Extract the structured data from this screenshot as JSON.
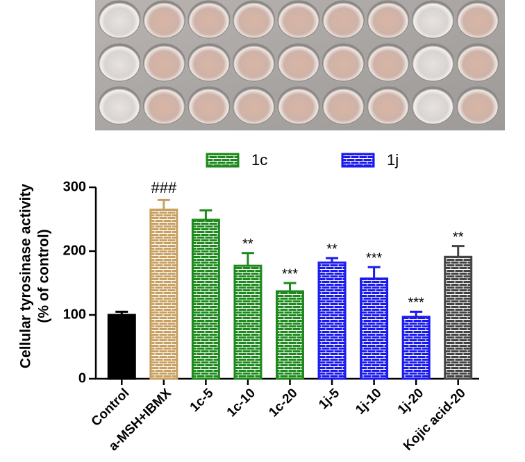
{
  "chart_data": {
    "type": "bar",
    "categories": [
      "Control",
      "a-MSH+IBMX",
      "1c-5",
      "1c-10",
      "1c-20",
      "1j-5",
      "1j-10",
      "1j-20",
      "Kojic acid-20"
    ],
    "values": [
      100,
      265,
      249,
      177,
      137,
      182,
      157,
      97,
      191
    ],
    "errors": [
      5,
      15,
      15,
      20,
      13,
      7,
      18,
      8,
      17
    ],
    "colors": [
      "#000000",
      "#c8a062",
      "#1e8a1e",
      "#1e8a1e",
      "#1e8a1e",
      "#1a1aee",
      "#1a1aee",
      "#1a1aee",
      "#444444"
    ],
    "hatch": [
      false,
      true,
      true,
      true,
      true,
      true,
      true,
      true,
      true
    ],
    "annotations": [
      null,
      "###",
      null,
      "**",
      "***",
      "**",
      "***",
      "***",
      "**"
    ],
    "ylabel": [
      "Cellular tyrosinase activity",
      "(% of control)"
    ],
    "ylim": [
      0,
      300
    ],
    "yticks": [
      0,
      100,
      200,
      300
    ],
    "legend": [
      {
        "name": "1c",
        "color": "#1e8a1e"
      },
      {
        "name": "1j",
        "color": "#1a1aee"
      }
    ]
  }
}
